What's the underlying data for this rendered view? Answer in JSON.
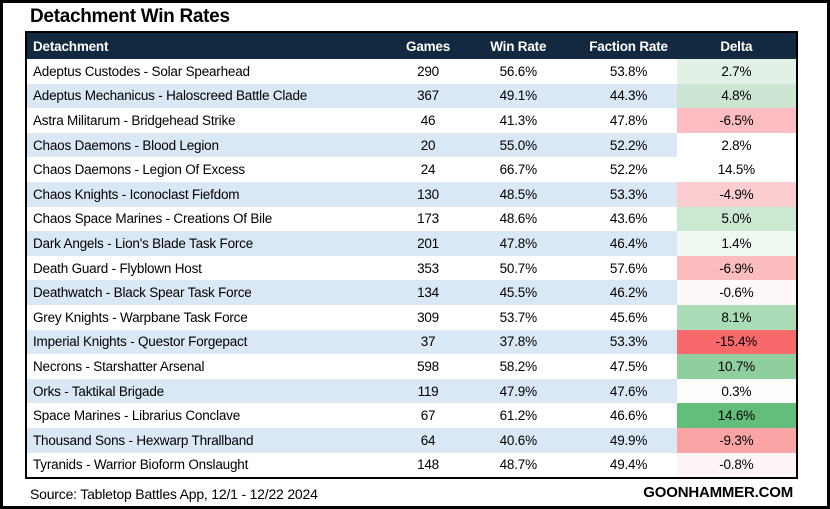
{
  "title": "Detachment Win Rates",
  "colors": {
    "header_bg": "#122940",
    "header_text": "#FFFFFF",
    "row_stripe": "#DAE7F4",
    "delta_scale_negative": "#F8696B",
    "delta_scale_midpoint": "#FFFFFF",
    "delta_scale_positive": "#63BE7B",
    "border": "#000000"
  },
  "chart_data": {
    "type": "table",
    "title": "Detachment Win Rates",
    "columns": [
      "Detachment",
      "Games",
      "Win Rate",
      "Faction Rate",
      "Delta"
    ],
    "rows": [
      {
        "detachment": "Adeptus Custodes - Solar Spearhead",
        "games": "290",
        "win_rate": "56.6%",
        "faction_rate": "53.8%",
        "delta": "2.7%",
        "delta_bg": "#E2F1E6"
      },
      {
        "detachment": "Adeptus Mechanicus - Haloscreed Battle Clade",
        "games": "367",
        "win_rate": "49.1%",
        "faction_rate": "44.3%",
        "delta": "4.8%",
        "delta_bg": "#CCE6D3"
      },
      {
        "detachment": "Astra Militarum - Bridgehead Strike",
        "games": "46",
        "win_rate": "41.3%",
        "faction_rate": "47.8%",
        "delta": "-6.5%",
        "delta_bg": "#FBBDC1"
      },
      {
        "detachment": "Chaos Daemons - Blood Legion",
        "games": "20",
        "win_rate": "55.0%",
        "faction_rate": "52.2%",
        "delta": "2.8%",
        "delta_bg": "#FFFFFF"
      },
      {
        "detachment": "Chaos Daemons - Legion Of Excess",
        "games": "24",
        "win_rate": "66.7%",
        "faction_rate": "52.2%",
        "delta": "14.5%",
        "delta_bg": "#FFFFFF"
      },
      {
        "detachment": "Chaos Knights - Iconoclast Fiefdom",
        "games": "130",
        "win_rate": "48.5%",
        "faction_rate": "53.3%",
        "delta": "-4.9%",
        "delta_bg": "#FCCDD0"
      },
      {
        "detachment": "Chaos Space Marines - Creations Of Bile",
        "games": "173",
        "win_rate": "48.6%",
        "faction_rate": "43.6%",
        "delta": "5.0%",
        "delta_bg": "#CBE8D3"
      },
      {
        "detachment": "Dark Angels - Lion's Blade Task Force",
        "games": "201",
        "win_rate": "47.8%",
        "faction_rate": "46.4%",
        "delta": "1.4%",
        "delta_bg": "#F0F8F2"
      },
      {
        "detachment": "Death Guard - Flyblown Host",
        "games": "353",
        "win_rate": "50.7%",
        "faction_rate": "57.6%",
        "delta": "-6.9%",
        "delta_bg": "#FBBCBE"
      },
      {
        "detachment": "Deathwatch - Black Spear Task Force",
        "games": "134",
        "win_rate": "45.5%",
        "faction_rate": "46.2%",
        "delta": "-0.6%",
        "delta_bg": "#FEF8F8"
      },
      {
        "detachment": "Grey Knights - Warpbane Task Force",
        "games": "309",
        "win_rate": "53.7%",
        "faction_rate": "45.6%",
        "delta": "8.1%",
        "delta_bg": "#A9DCB7"
      },
      {
        "detachment": "Imperial Knights - Questor Forgepact",
        "games": "37",
        "win_rate": "37.8%",
        "faction_rate": "53.3%",
        "delta": "-15.4%",
        "delta_bg": "#F8696B"
      },
      {
        "detachment": "Necrons - Starshatter Arsenal",
        "games": "598",
        "win_rate": "58.2%",
        "faction_rate": "47.5%",
        "delta": "10.7%",
        "delta_bg": "#8FCF9F"
      },
      {
        "detachment": "Orks - Taktikal Brigade",
        "games": "119",
        "win_rate": "47.9%",
        "faction_rate": "47.6%",
        "delta": "0.3%",
        "delta_bg": "#FCFEFC"
      },
      {
        "detachment": "Space Marines - Librarius Conclave",
        "games": "67",
        "win_rate": "61.2%",
        "faction_rate": "46.6%",
        "delta": "14.6%",
        "delta_bg": "#63BE7B"
      },
      {
        "detachment": "Thousand Sons - Hexwarp Thrallband",
        "games": "64",
        "win_rate": "40.6%",
        "faction_rate": "49.9%",
        "delta": "-9.3%",
        "delta_bg": "#FBA4A6"
      },
      {
        "detachment": "Tyranids - Warrior Bioform Onslaught",
        "games": "148",
        "win_rate": "48.7%",
        "faction_rate": "49.4%",
        "delta": "-0.8%",
        "delta_bg": "#FEF6F6"
      }
    ]
  },
  "footer": {
    "source": "Source: Tabletop Battles App, 12/1 - 12/22 2024",
    "brand": "GOONHAMMER.COM"
  }
}
